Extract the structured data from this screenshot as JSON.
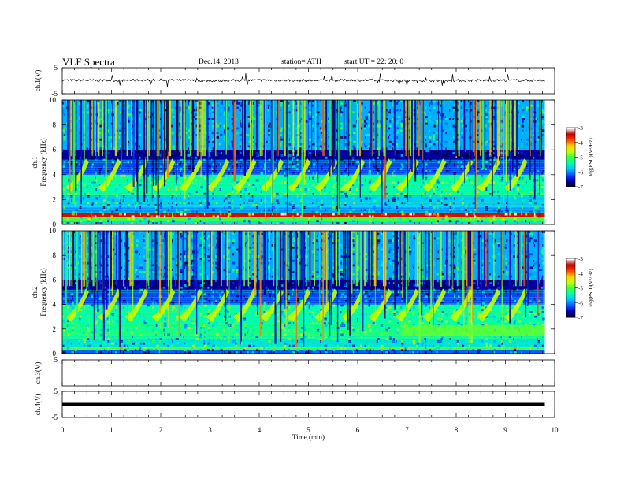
{
  "header": {
    "title": "VLF  Spectra",
    "date": "Dec.14, 2013",
    "station": "station= ATH",
    "start": "start  UT  =    22: 20: 0"
  },
  "colors": {
    "spectrogram_ramp": [
      "#000020",
      "#0000c8",
      "#0060ff",
      "#00c8ff",
      "#00ffaa",
      "#40ff40",
      "#c8ff00",
      "#ffd000",
      "#ff4000",
      "#c00000",
      "#ffffff"
    ]
  },
  "chart_data": [
    {
      "type": "line",
      "panel": "ch1-waveform",
      "ylabel": "ch.1(V)",
      "ylim": [
        -5,
        5
      ],
      "y_ticks": [
        "5",
        "-5"
      ],
      "x": [
        0,
        1,
        2,
        3,
        4,
        5,
        6,
        7,
        8,
        9,
        9.8
      ],
      "series": [
        {
          "values": [
            0.2,
            0.1,
            0.3,
            0.0,
            0.2,
            0.1,
            0.2,
            0.0,
            0.1,
            0.2,
            0.1
          ]
        }
      ]
    },
    {
      "type": "heatmap",
      "panel": "ch1-spectrogram",
      "ylabel": "ch.1",
      "ylabel2": "Frequency  (kHz)",
      "ylim": [
        0,
        10
      ],
      "y_ticks": [
        "0",
        "2",
        "4",
        "6",
        "8",
        "10"
      ],
      "colorbar": {
        "label": "log(PSD)(V²/Hz)",
        "ticks": [
          "-3",
          "-4",
          "-5",
          "-6",
          "-7"
        ],
        "range": [
          -7,
          -3
        ]
      },
      "bands_khz": [
        {
          "from": 0.0,
          "to": 0.3,
          "level": -5.6
        },
        {
          "from": 0.3,
          "to": 0.6,
          "level": -5.0
        },
        {
          "from": 0.6,
          "to": 0.9,
          "level": -3.5
        },
        {
          "from": 0.9,
          "to": 1.4,
          "level": -6.0
        },
        {
          "from": 1.4,
          "to": 2.4,
          "level": -5.8
        },
        {
          "from": 2.4,
          "to": 4.0,
          "level": -5.4
        },
        {
          "from": 4.0,
          "to": 5.2,
          "level": -6.3
        },
        {
          "from": 5.2,
          "to": 6.0,
          "level": -6.7
        },
        {
          "from": 6.0,
          "to": 10.0,
          "level": -5.9
        }
      ],
      "hiss_bursts_min": [
        0.35,
        1.0,
        1.55,
        2.1,
        2.65,
        3.2,
        3.75,
        4.3,
        4.85,
        5.4,
        5.95,
        6.5,
        7.05,
        7.6,
        8.15,
        8.7,
        9.25
      ]
    },
    {
      "type": "heatmap",
      "panel": "ch2-spectrogram",
      "ylabel": "ch.2",
      "ylabel2": "Frequency  (kHz)",
      "ylim": [
        0,
        10
      ],
      "y_ticks": [
        "0",
        "2",
        "4",
        "6",
        "8",
        "10"
      ],
      "colorbar": {
        "label": "log(PSD)(V²/Hz)",
        "ticks": [
          "-3",
          "-4",
          "-5",
          "-6",
          "-7"
        ],
        "range": [
          -7,
          -3
        ]
      },
      "bands_khz": [
        {
          "from": 0.0,
          "to": 0.3,
          "level": -6.2
        },
        {
          "from": 0.3,
          "to": 0.5,
          "level": -5.0
        },
        {
          "from": 0.5,
          "to": 1.2,
          "level": -5.6
        },
        {
          "from": 1.2,
          "to": 2.4,
          "level": -5.3
        },
        {
          "from": 2.4,
          "to": 4.0,
          "level": -5.4
        },
        {
          "from": 4.0,
          "to": 5.2,
          "level": -6.3
        },
        {
          "from": 5.2,
          "to": 6.0,
          "level": -6.7
        },
        {
          "from": 6.0,
          "to": 10.0,
          "level": -5.9
        }
      ],
      "hiss_bursts_min": [
        0.35,
        1.0,
        1.55,
        2.1,
        2.65,
        3.2,
        3.75,
        4.3,
        4.85,
        5.4,
        5.95,
        6.5,
        7.05,
        7.6,
        8.15,
        8.7,
        9.25
      ]
    },
    {
      "type": "line",
      "panel": "ch3-waveform",
      "ylabel": "ch.3(V)",
      "ylim": [
        -5,
        5
      ],
      "y_ticks": [
        "5"
      ],
      "x": [
        0,
        9.8
      ],
      "series": [
        {
          "values": [
            -1.2,
            -1.2
          ]
        }
      ]
    },
    {
      "type": "line",
      "panel": "ch4-waveform",
      "ylabel": "ch.4(V)",
      "ylim": [
        -5,
        5
      ],
      "y_ticks": [
        "5",
        "-5"
      ],
      "x": [
        0,
        9.8
      ],
      "series": [
        {
          "values": [
            0.0,
            0.0
          ]
        }
      ]
    }
  ],
  "x_axis": {
    "xlabel": "Time  (min)",
    "xlim": [
      0,
      10
    ],
    "ticks": [
      "0",
      "1",
      "2",
      "3",
      "4",
      "5",
      "6",
      "7",
      "8",
      "9",
      "10"
    ],
    "data_end": 9.8
  }
}
